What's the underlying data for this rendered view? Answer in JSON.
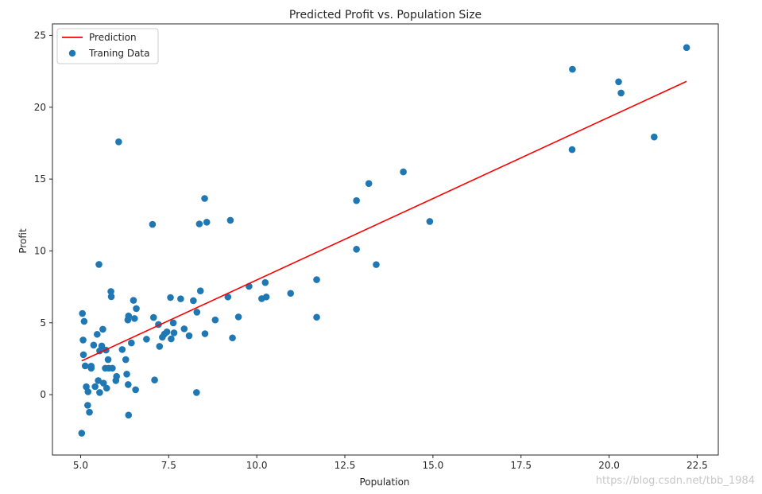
{
  "chart_data": {
    "type": "scatter",
    "title": "Predicted Profit vs. Population Size",
    "xlabel": "Population",
    "ylabel": "Profit",
    "xlim": [
      4.2,
      23.1
    ],
    "ylim": [
      -4.2,
      25.8
    ],
    "xticks": [
      5.0,
      7.5,
      10.0,
      12.5,
      15.0,
      17.5,
      20.0,
      22.5
    ],
    "xtick_labels": [
      "5.0",
      "7.5",
      "10.0",
      "12.5",
      "15.0",
      "17.5",
      "20.0",
      "22.5"
    ],
    "yticks": [
      0,
      5,
      10,
      15,
      20,
      25
    ],
    "ytick_labels": [
      "0",
      "5",
      "10",
      "15",
      "20",
      "25"
    ],
    "grid": false,
    "legend_position": "upper-left",
    "series": [
      {
        "name": "Prediction",
        "kind": "line",
        "color": "#ff0000",
        "x": [
          5.03,
          22.2
        ],
        "y": [
          2.35,
          21.8
        ]
      },
      {
        "name": "Traning Data",
        "kind": "scatter",
        "color": "#1f77b4",
        "points": [
          [
            5.03,
            -2.68
          ],
          [
            5.05,
            5.65
          ],
          [
            5.07,
            3.8
          ],
          [
            5.08,
            2.78
          ],
          [
            5.1,
            5.1
          ],
          [
            5.13,
            2.0
          ],
          [
            5.16,
            0.55
          ],
          [
            5.2,
            -0.74
          ],
          [
            5.21,
            0.2
          ],
          [
            5.25,
            -1.22
          ],
          [
            5.3,
            1.98
          ],
          [
            5.3,
            1.84
          ],
          [
            5.37,
            3.45
          ],
          [
            5.41,
            0.56
          ],
          [
            5.47,
            4.2
          ],
          [
            5.5,
            0.98
          ],
          [
            5.52,
            9.06
          ],
          [
            5.54,
            3.05
          ],
          [
            5.54,
            0.15
          ],
          [
            5.6,
            3.39
          ],
          [
            5.63,
            4.55
          ],
          [
            5.65,
            0.8
          ],
          [
            5.7,
            1.84
          ],
          [
            5.72,
            3.1
          ],
          [
            5.74,
            0.45
          ],
          [
            5.78,
            2.44
          ],
          [
            5.8,
            1.84
          ],
          [
            5.86,
            7.18
          ],
          [
            5.87,
            6.82
          ],
          [
            5.9,
            1.84
          ],
          [
            6.0,
            0.98
          ],
          [
            6.02,
            1.27
          ],
          [
            6.08,
            17.59
          ],
          [
            6.18,
            3.14
          ],
          [
            6.28,
            2.44
          ],
          [
            6.31,
            1.43
          ],
          [
            6.34,
            5.2
          ],
          [
            6.35,
            0.7
          ],
          [
            6.36,
            5.48
          ],
          [
            6.36,
            -1.42
          ],
          [
            6.44,
            3.6
          ],
          [
            6.5,
            6.56
          ],
          [
            6.53,
            5.3
          ],
          [
            6.56,
            0.34
          ],
          [
            6.58,
            5.99
          ],
          [
            6.87,
            3.86
          ],
          [
            7.04,
            11.85
          ],
          [
            7.07,
            5.37
          ],
          [
            7.1,
            1.02
          ],
          [
            7.21,
            4.88
          ],
          [
            7.24,
            3.36
          ],
          [
            7.32,
            4.0
          ],
          [
            7.38,
            4.22
          ],
          [
            7.45,
            4.37
          ],
          [
            7.55,
            6.76
          ],
          [
            7.57,
            3.88
          ],
          [
            7.63,
            4.99
          ],
          [
            7.65,
            4.3
          ],
          [
            7.84,
            6.67
          ],
          [
            7.94,
            4.58
          ],
          [
            8.08,
            4.1
          ],
          [
            8.2,
            6.54
          ],
          [
            8.3,
            5.74
          ],
          [
            8.29,
            0.15
          ],
          [
            8.37,
            11.88
          ],
          [
            8.4,
            7.22
          ],
          [
            8.53,
            4.24
          ],
          [
            8.52,
            13.65
          ],
          [
            8.58,
            12.0
          ],
          [
            8.82,
            5.2
          ],
          [
            9.18,
            6.8
          ],
          [
            9.25,
            12.13
          ],
          [
            9.31,
            3.95
          ],
          [
            9.48,
            5.41
          ],
          [
            9.78,
            7.54
          ],
          [
            10.14,
            6.68
          ],
          [
            10.24,
            7.8
          ],
          [
            10.27,
            6.8
          ],
          [
            10.96,
            7.05
          ],
          [
            11.7,
            8.0
          ],
          [
            11.7,
            5.39
          ],
          [
            12.83,
            13.5
          ],
          [
            12.83,
            10.12
          ],
          [
            13.18,
            14.69
          ],
          [
            13.39,
            9.05
          ],
          [
            14.16,
            15.5
          ],
          [
            14.91,
            12.05
          ],
          [
            18.95,
            17.05
          ],
          [
            18.96,
            22.64
          ],
          [
            20.27,
            21.77
          ],
          [
            20.34,
            20.99
          ],
          [
            21.28,
            17.93
          ],
          [
            22.2,
            24.15
          ]
        ]
      }
    ]
  },
  "watermark": "https://blog.csdn.net/tbb_1984"
}
